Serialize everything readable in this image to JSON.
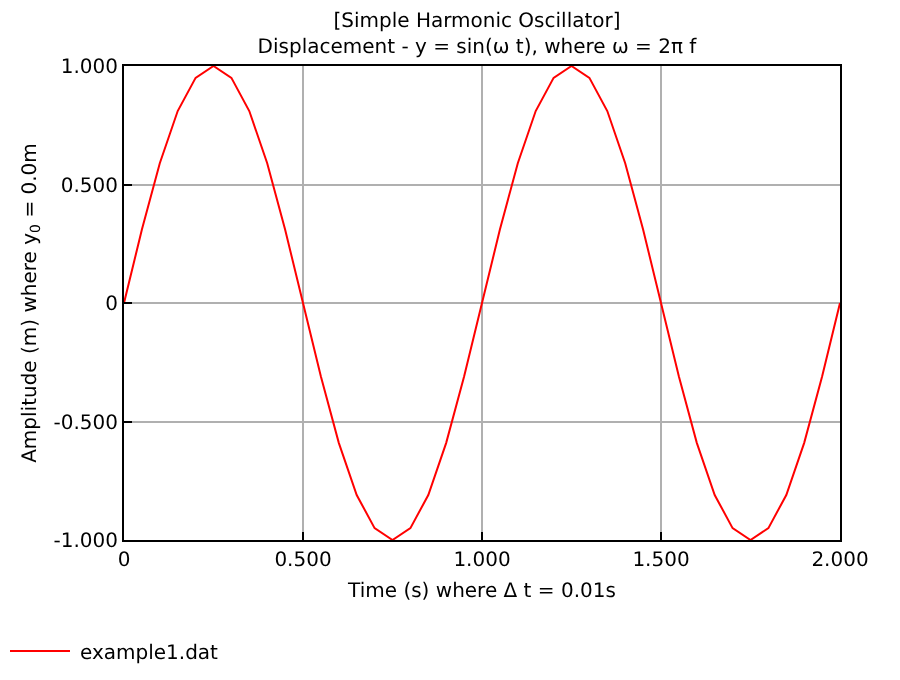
{
  "chart_data": {
    "type": "line",
    "title": "[Simple Harmonic Oscillator]",
    "subtitle": "Displacement - y = sin(ω t), where ω = 2π f",
    "xlabel": "Time (s) where Δ t = 0.01s",
    "ylabel": "Amplitude (m) where y$_{0}$ = 0.0m",
    "x": [
      0,
      0.05,
      0.1,
      0.15,
      0.2,
      0.25,
      0.3,
      0.35,
      0.4,
      0.45,
      0.5,
      0.55,
      0.6,
      0.65,
      0.7,
      0.75,
      0.8,
      0.85,
      0.9,
      0.95,
      1,
      1.05,
      1.1,
      1.15,
      1.2,
      1.25,
      1.3,
      1.35,
      1.4,
      1.45,
      1.5,
      1.55,
      1.6,
      1.65,
      1.7,
      1.75,
      1.8,
      1.85,
      1.9,
      1.95,
      2
    ],
    "series": [
      {
        "name": "example1.dat",
        "color": "#ff0000",
        "values": [
          0,
          0.31,
          0.59,
          0.81,
          0.95,
          1,
          0.95,
          0.81,
          0.59,
          0.31,
          0,
          -0.31,
          -0.59,
          -0.81,
          -0.95,
          -1,
          -0.95,
          -0.81,
          -0.59,
          -0.31,
          0,
          0.31,
          0.59,
          0.81,
          0.95,
          1,
          0.95,
          0.81,
          0.59,
          0.31,
          0,
          -0.31,
          -0.59,
          -0.81,
          -0.95,
          -1,
          -0.95,
          -0.81,
          -0.59,
          -0.31,
          0
        ]
      }
    ],
    "xlim": [
      0,
      2
    ],
    "ylim": [
      -1,
      1
    ],
    "xticks": [
      0,
      {
        "value": 0.5,
        "label": "0.500"
      },
      {
        "value": 1,
        "label": "1.000"
      },
      {
        "value": 1.5,
        "label": "1.500"
      },
      {
        "value": 2,
        "label": "2.000"
      }
    ],
    "yticks": [
      {
        "value": -1,
        "label": "-1.000"
      },
      {
        "value": -0.5,
        "label": "-0.500"
      },
      0,
      {
        "value": 0.5,
        "label": "0.500"
      },
      {
        "value": 1,
        "label": "1.000"
      }
    ],
    "grid": true,
    "legend": "bottom left",
    "marker": "none",
    "line_style": "solid"
  }
}
